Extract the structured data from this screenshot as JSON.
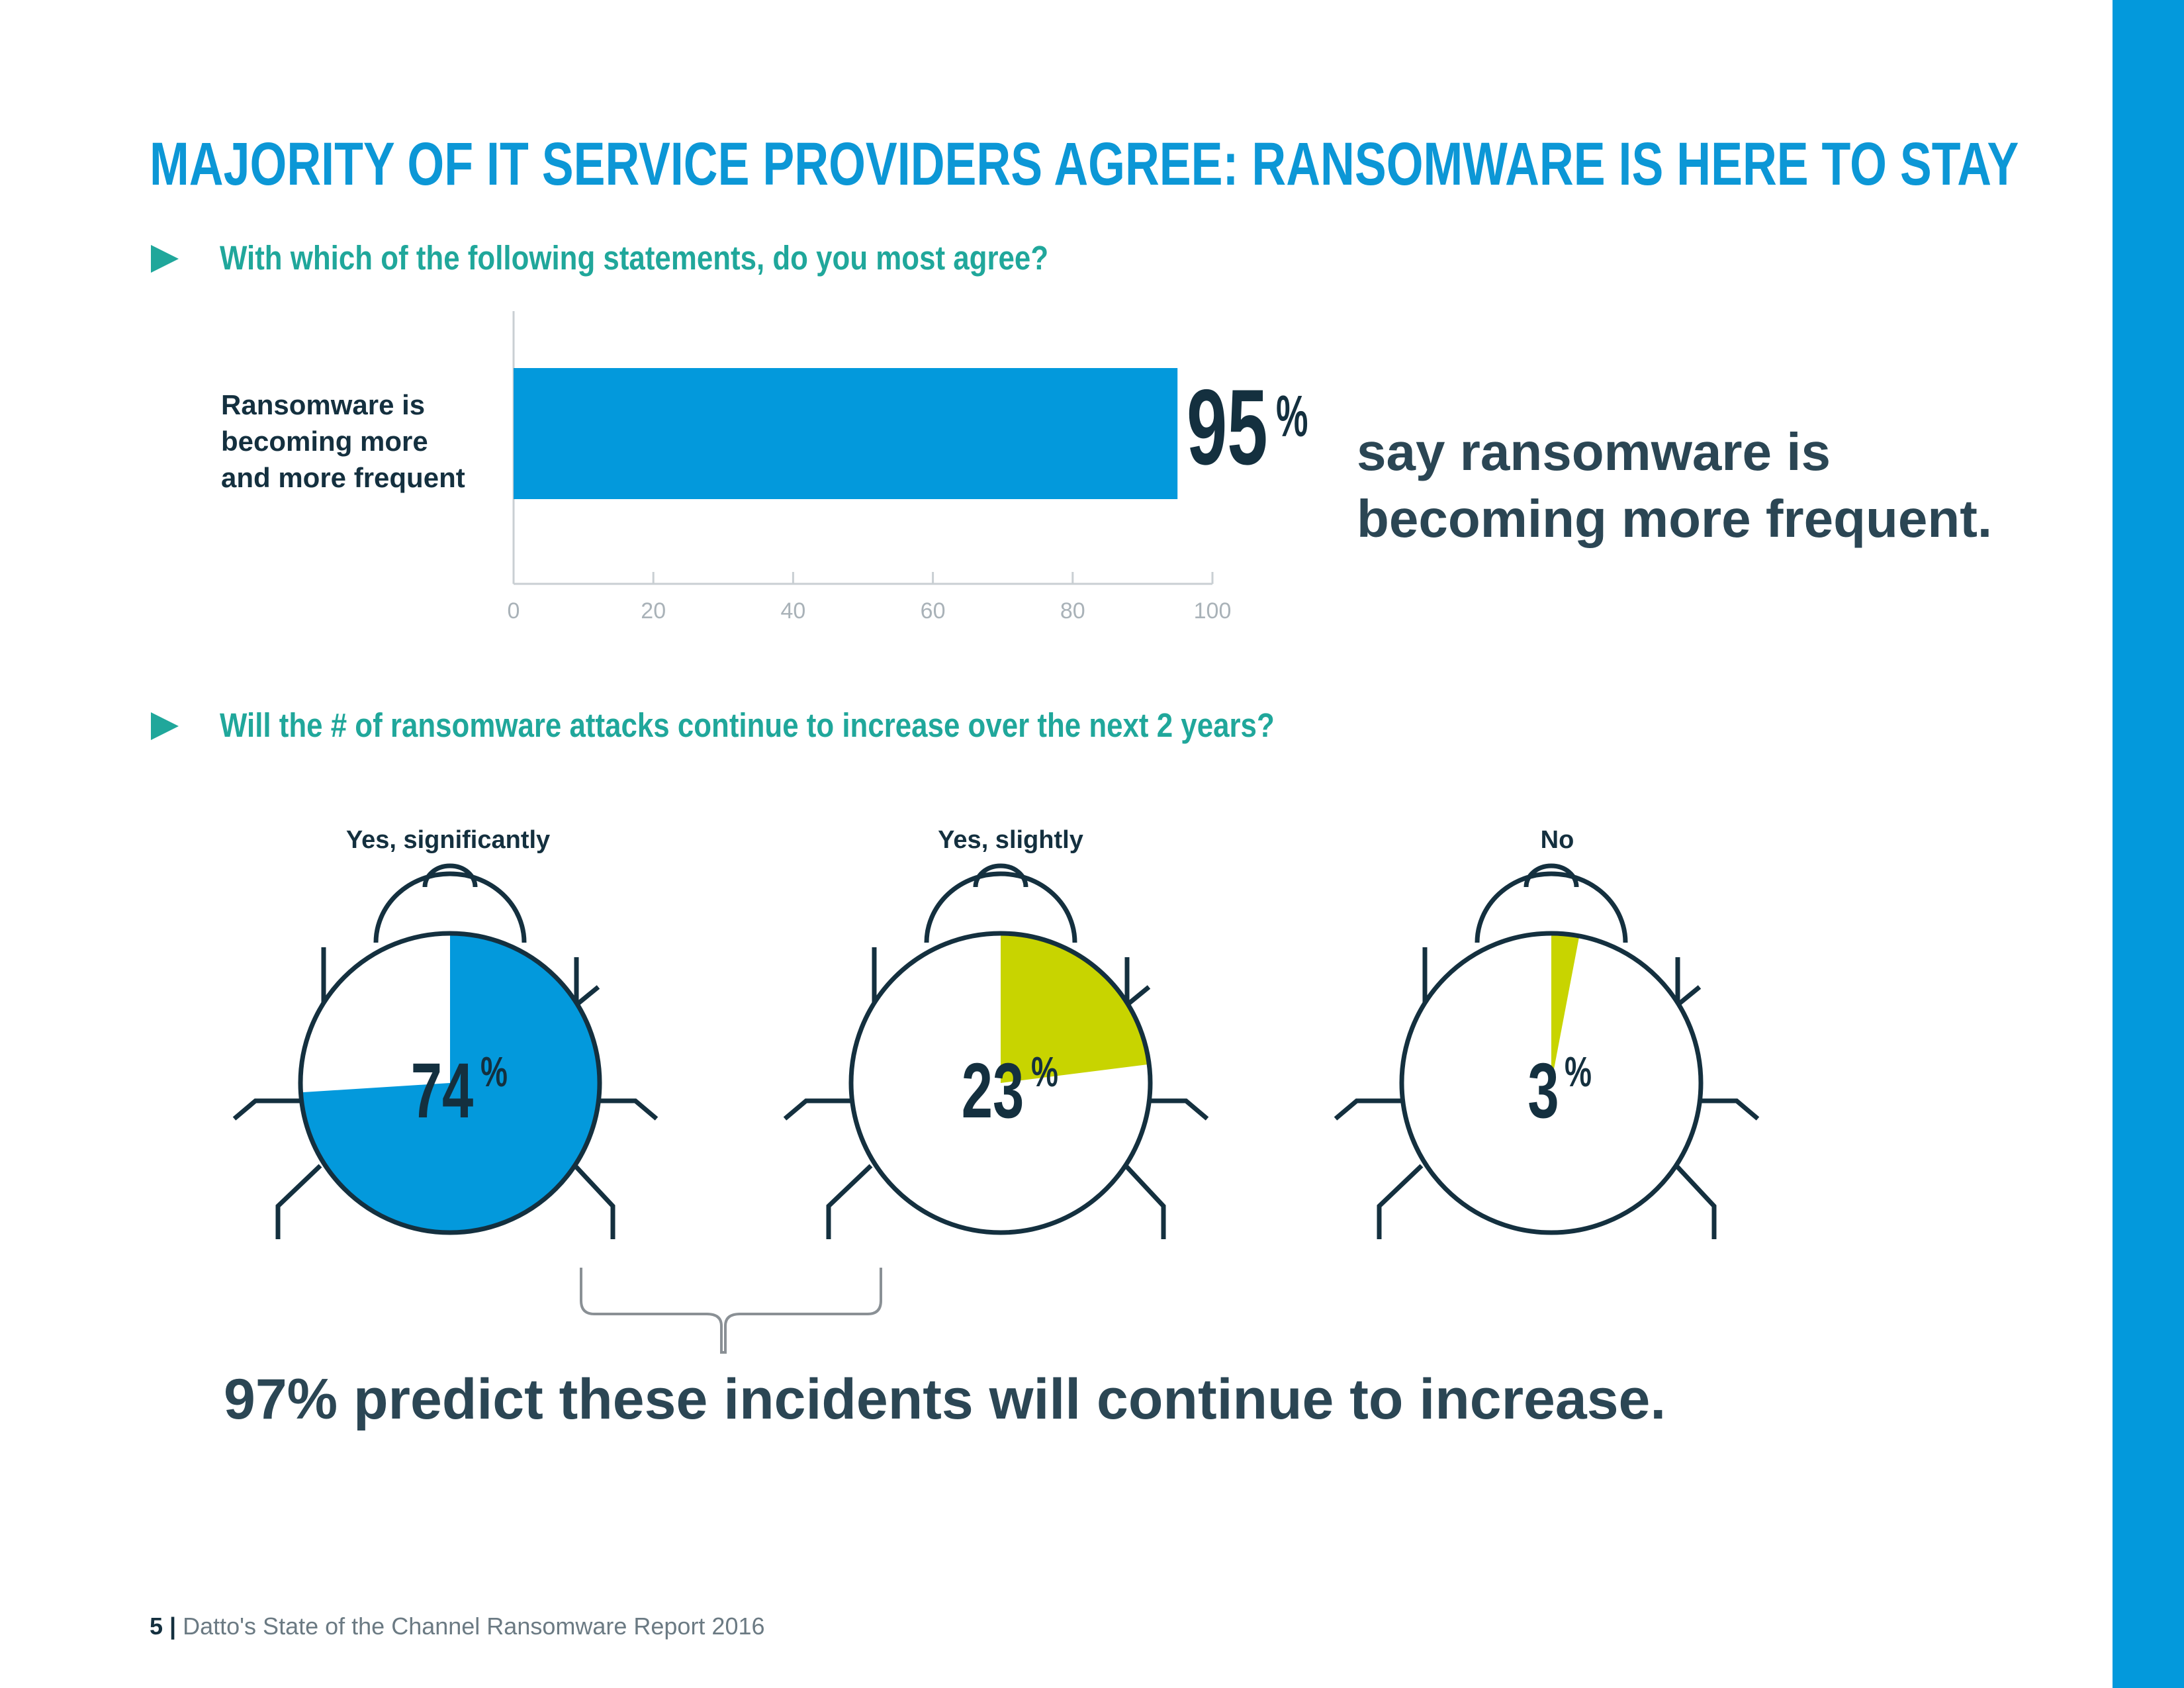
{
  "page": {
    "title": "MAJORITY OF IT SERVICE PROVIDERS AGREE: RANSOMWARE IS HERE TO STAY",
    "question1": "With which of the following statements, do you most agree?",
    "question2": "Will the # of ransomware attacks continue to increase over the next 2 years?",
    "callout_line1": "say ransomware is",
    "callout_line2": "becoming more frequent.",
    "bottom_callout": "97% predict these incidents will continue to increase.",
    "footer_page": "5",
    "footer_sep": "|",
    "footer_text": "Datto's State of the Channel Ransomware Report 2016"
  },
  "colors": {
    "accent_blue": "#0399dc",
    "teal": "#20a79b",
    "lime": "#c8d400",
    "dark": "#14303f"
  },
  "chart_data": [
    {
      "type": "bar",
      "orientation": "horizontal",
      "categories": [
        "Ransomware is becoming more and more frequent"
      ],
      "values": [
        95
      ],
      "value_label": "95",
      "value_suffix": "%",
      "xlim": [
        0,
        100
      ],
      "xticks": [
        "0",
        "20",
        "40",
        "60",
        "80",
        "100"
      ],
      "label_lines": [
        "Ransomware is",
        "becoming more",
        "and more frequent"
      ],
      "color": "#0399dc"
    },
    {
      "type": "pie",
      "title": "Will the # of ransomware attacks continue to increase over the next 2 years?",
      "slices": [
        {
          "label": "Yes, significantly",
          "value": 74,
          "value_label": "74",
          "suffix": "%",
          "color": "#0399dc"
        },
        {
          "label": "Yes, slightly",
          "value": 23,
          "value_label": "23",
          "suffix": "%",
          "color": "#c8d400"
        },
        {
          "label": "No",
          "value": 3,
          "value_label": "3",
          "suffix": "%",
          "color": "#c8d400"
        }
      ]
    }
  ]
}
